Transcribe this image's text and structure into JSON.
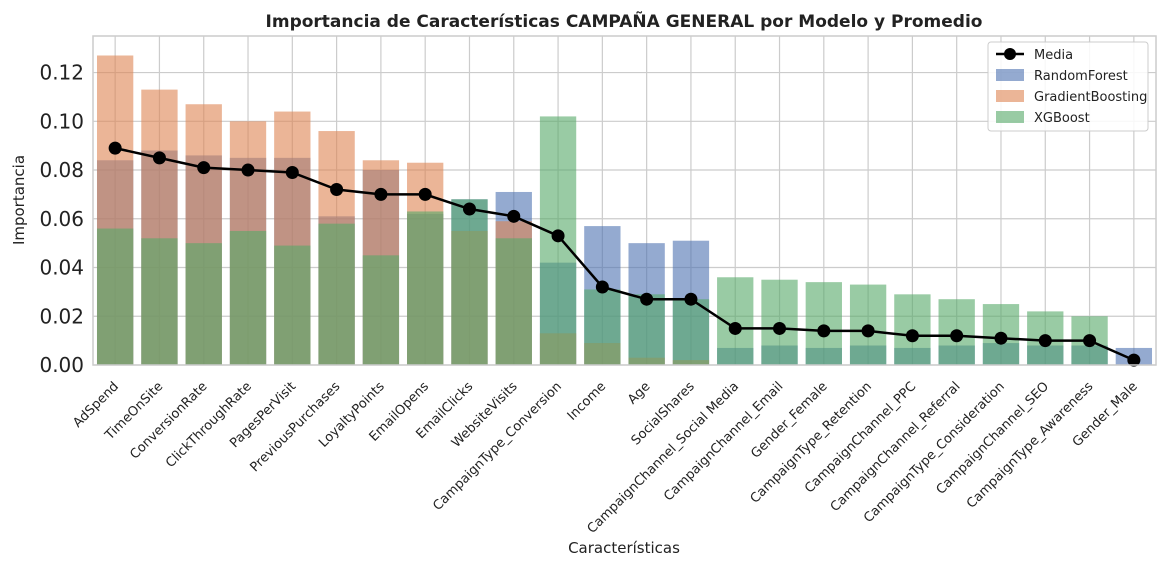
{
  "chart_data": {
    "type": "bar",
    "title": "Importancia de Características CAMPAÑA GENERAL por Modelo y Promedio",
    "xlabel": "Características",
    "ylabel": "Importancia",
    "ylim": [
      0,
      0.135
    ],
    "yticks": [
      "0.00",
      "0.02",
      "0.04",
      "0.06",
      "0.08",
      "0.10",
      "0.12"
    ],
    "grid": true,
    "legend_position": "top-right",
    "categories": [
      "AdSpend",
      "TimeOnSite",
      "ConversionRate",
      "ClickThroughRate",
      "PagesPerVisit",
      "PreviousPurchases",
      "LoyaltyPoints",
      "EmailOpens",
      "EmailClicks",
      "WebsiteVisits",
      "CampaignType_Conversion",
      "Income",
      "Age",
      "SocialShares",
      "CampaignChannel_Social Media",
      "CampaignChannel_Email",
      "Gender_Female",
      "CampaignType_Retention",
      "CampaignChannel_PPC",
      "CampaignChannel_Referral",
      "CampaignType_Consideration",
      "CampaignChannel_SEO",
      "CampaignType_Awareness",
      "Gender_Male"
    ],
    "series": [
      {
        "name": "RandomForest",
        "color": "#4c72b0",
        "values": [
          0.084,
          0.088,
          0.086,
          0.085,
          0.085,
          0.061,
          0.08,
          0.062,
          0.068,
          0.071,
          0.042,
          0.057,
          0.05,
          0.051,
          0.007,
          0.008,
          0.007,
          0.008,
          0.007,
          0.008,
          0.009,
          0.008,
          0.008,
          0.007
        ]
      },
      {
        "name": "GradientBoosting",
        "color": "#dd8452",
        "values": [
          0.127,
          0.113,
          0.107,
          0.1,
          0.104,
          0.096,
          0.084,
          0.083,
          0.055,
          0.059,
          0.013,
          0.009,
          0.003,
          0.002,
          0.0,
          0.0,
          0.0,
          0.0,
          0.0,
          0.0,
          0.0,
          0.0,
          0.0,
          0.0
        ]
      },
      {
        "name": "XGBoost",
        "color": "#55a868",
        "values": [
          0.056,
          0.052,
          0.05,
          0.055,
          0.049,
          0.058,
          0.045,
          0.063,
          0.068,
          0.052,
          0.102,
          0.031,
          0.029,
          0.027,
          0.036,
          0.035,
          0.034,
          0.033,
          0.029,
          0.027,
          0.025,
          0.022,
          0.02,
          0.0
        ]
      }
    ],
    "mean": {
      "name": "Media",
      "color": "#000000",
      "values": [
        0.089,
        0.085,
        0.081,
        0.08,
        0.079,
        0.072,
        0.07,
        0.07,
        0.064,
        0.061,
        0.053,
        0.032,
        0.027,
        0.027,
        0.015,
        0.015,
        0.014,
        0.014,
        0.012,
        0.012,
        0.011,
        0.01,
        0.01,
        0.002
      ]
    }
  }
}
